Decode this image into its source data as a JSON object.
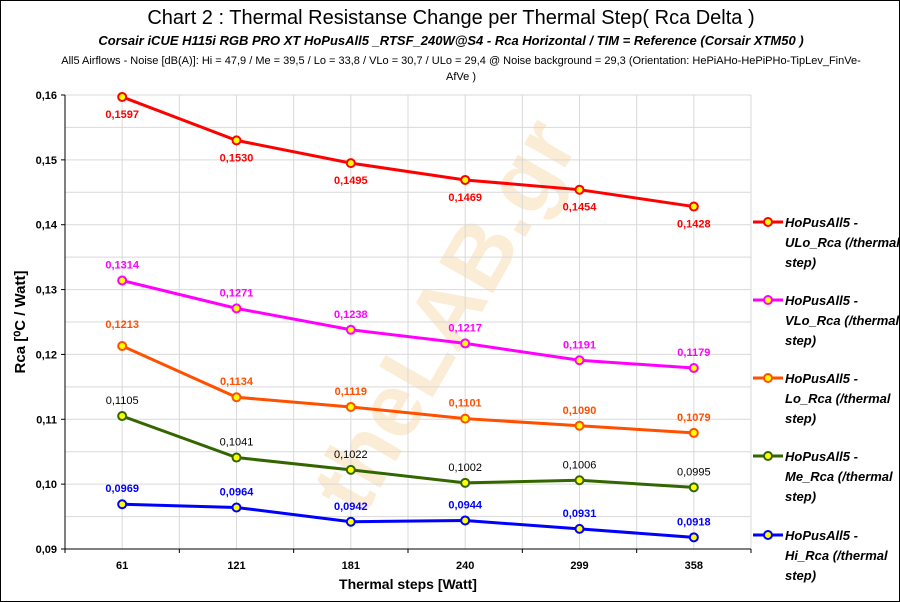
{
  "title": "Chart 2 : Thermal Resistanse Change per Thermal Step( Rca  Delta )",
  "subtitle": "Corsair iCUE H115i RGB PRO XT  HoPusAll5 _RTSF_240W@S4  -  Rca Horizontal    /  TIM =  Reference  (Corsair XTM50 )",
  "subtitle2": "All5  Airflows  - Noise [dB(A)]: Hi = 47,9 / Me = 39,5 / Lo = 33,8 / VLo = 30,7 / ULo  = 29,4 @ Noise background = 29,3    (Orientation: HePiAHo-HePiPHo-TipLev_FinVe-AfVe  )",
  "watermark": "theLAB.gr",
  "chart_data": {
    "type": "line",
    "xlabel": "Thermal steps  [Watt]",
    "ylabel": "Rca  [⁰C / Watt]",
    "categories": [
      "61",
      "121",
      "181",
      "240",
      "299",
      "358"
    ],
    "ylim": [
      0.09,
      0.16
    ],
    "yticks": [
      "0,09",
      "0,10",
      "0,11",
      "0,12",
      "0,13",
      "0,14",
      "0,15",
      "0,16"
    ],
    "grid": true,
    "legend": "right",
    "series": [
      {
        "name": "HoPusAll5 - ULo_Rca (/thermal step)",
        "color": "#ff0000",
        "labelColor": "#ff0000",
        "values": [
          0.1597,
          0.153,
          0.1495,
          0.1469,
          0.1454,
          0.1428
        ],
        "labels": [
          "0,1597",
          "0,1530",
          "0,1495",
          "0,1469",
          "0,1454",
          "0,1428"
        ]
      },
      {
        "name": "HoPusAll5 - VLo_Rca (/thermal step)",
        "color": "#ff00ff",
        "labelColor": "#ff00ff",
        "values": [
          0.1314,
          0.1271,
          0.1238,
          0.1217,
          0.1191,
          0.1179
        ],
        "labels": [
          "0,1314",
          "0,1271",
          "0,1238",
          "0,1217",
          "0,1191",
          "0,1179"
        ]
      },
      {
        "name": "HoPusAll5 - Lo_Rca (/thermal step)",
        "color": "#ff5000",
        "labelColor": "#ff5000",
        "values": [
          0.1213,
          0.1134,
          0.1119,
          0.1101,
          0.109,
          0.1079
        ],
        "labels": [
          "0,1213",
          "0,1134",
          "0,1119",
          "0,1101",
          "0,1090",
          "0,1079"
        ]
      },
      {
        "name": "HoPusAll5 - Me_Rca (/thermal step)",
        "color": "#336600",
        "labelColor": "#000000",
        "values": [
          0.1105,
          0.1041,
          0.1022,
          0.1002,
          0.1006,
          0.0995
        ],
        "labels": [
          "0,1105",
          "0,1041",
          "0,1022",
          "0,1002",
          "0,1006",
          "0,0995"
        ]
      },
      {
        "name": "HoPusAll5 - Hi_Rca (/thermal step)",
        "color": "#0000ff",
        "labelColor": "#0000ff",
        "values": [
          0.0969,
          0.0964,
          0.0942,
          0.0944,
          0.0931,
          0.0918
        ],
        "labels": [
          "0,0969",
          "0,0964",
          "0,0942",
          "0,0944",
          "0,0931",
          "0,0918"
        ]
      }
    ]
  }
}
